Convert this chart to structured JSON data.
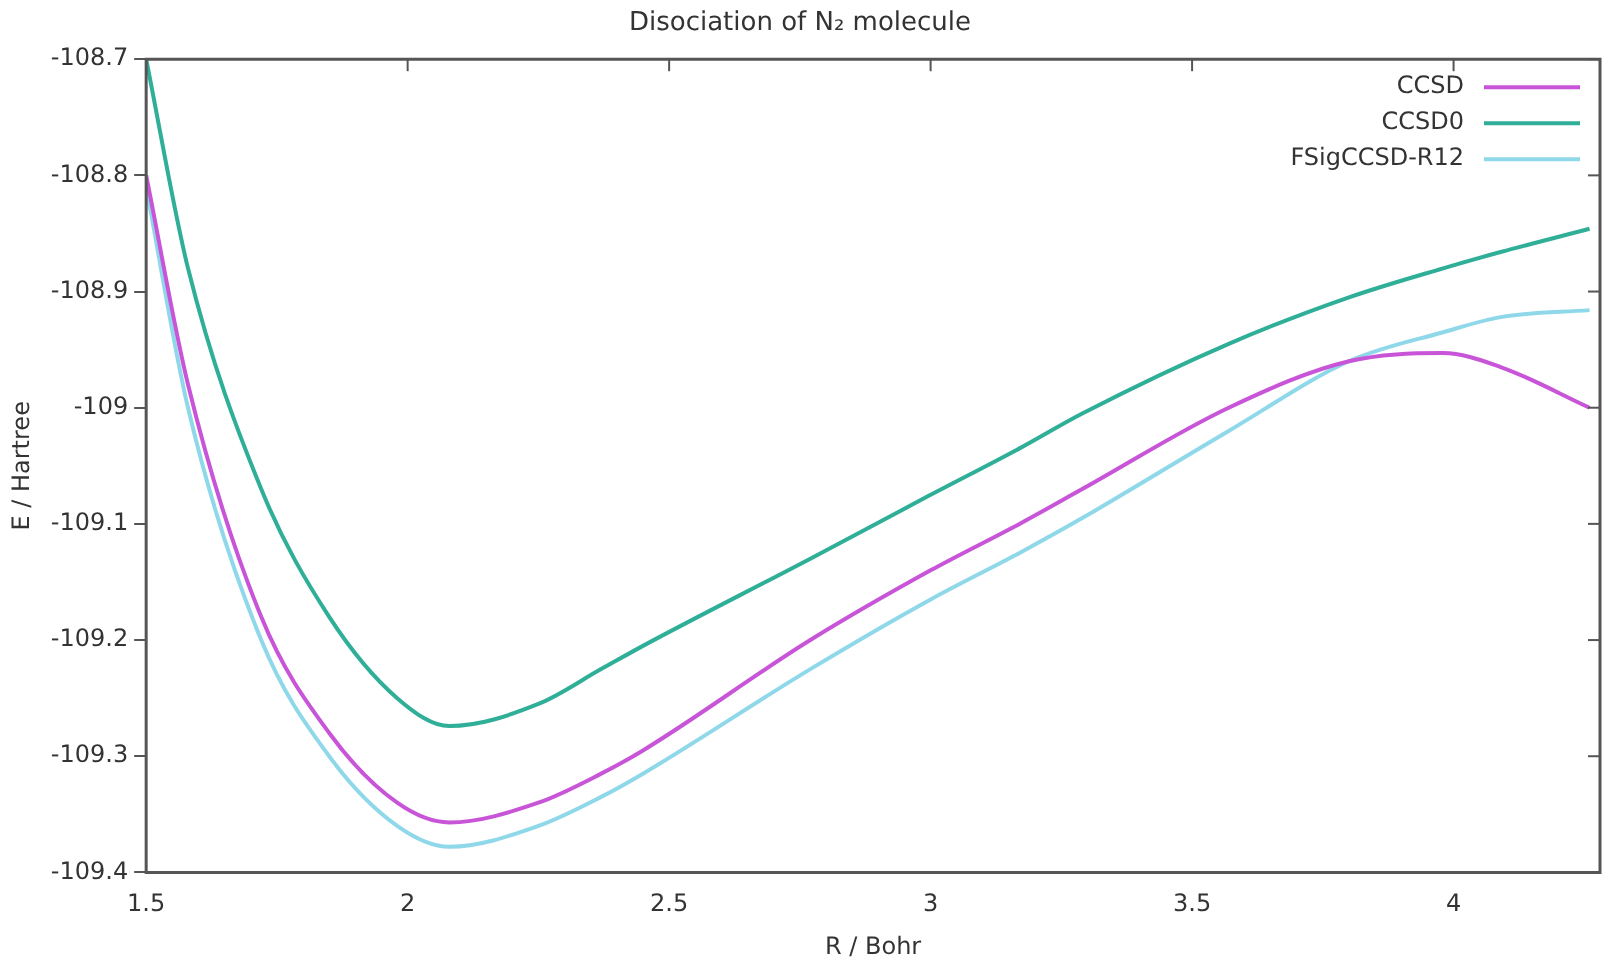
{
  "chart_data": {
    "type": "line",
    "title": "Disociation of N₂ molecule",
    "xlabel": "R / Bohr",
    "ylabel": "E / Hartree",
    "x": [
      1.5,
      1.58,
      1.72,
      1.85,
      1.98,
      2.08,
      2.25,
      2.37,
      2.45,
      2.77,
      3.0,
      3.17,
      3.29,
      3.57,
      3.8,
      3.98,
      4.09,
      4.26
    ],
    "series": [
      {
        "name": "CCSD",
        "color": "#c855d8",
        "values": [
          -108.8,
          -108.98,
          -109.18,
          -109.28,
          -109.34,
          -109.357,
          -109.34,
          -109.315,
          -109.295,
          -109.2,
          -109.14,
          -109.1,
          -109.07,
          -109.0,
          -108.96,
          -108.953,
          -108.965,
          -109.0
        ]
      },
      {
        "name": "CCSD0",
        "color": "#2fae98",
        "values": [
          -108.7,
          -108.88,
          -109.07,
          -109.18,
          -109.25,
          -109.274,
          -109.255,
          -109.225,
          -109.205,
          -109.13,
          -109.075,
          -109.035,
          -109.005,
          -108.945,
          -108.905,
          -108.88,
          -108.866,
          -108.846
        ]
      },
      {
        "name": "FSigCCSD-R12",
        "color": "#8fd8ea",
        "values": [
          -108.81,
          -109.0,
          -109.2,
          -109.3,
          -109.36,
          -109.378,
          -109.36,
          -109.335,
          -109.315,
          -109.225,
          -109.165,
          -109.125,
          -109.095,
          -109.02,
          -108.96,
          -108.935,
          -108.922,
          -108.916
        ]
      }
    ],
    "xlim": [
      1.5,
      4.28
    ],
    "ylim": [
      -109.4,
      -108.7
    ],
    "xticks": [
      1.5,
      2,
      2.5,
      3,
      3.5,
      4
    ],
    "yticks": [
      -109.4,
      -109.3,
      -109.2,
      -109.1,
      -109,
      -108.9,
      -108.8,
      -108.7
    ],
    "grid": false,
    "legend": "top right",
    "marker": "none",
    "line_style": "solid"
  }
}
